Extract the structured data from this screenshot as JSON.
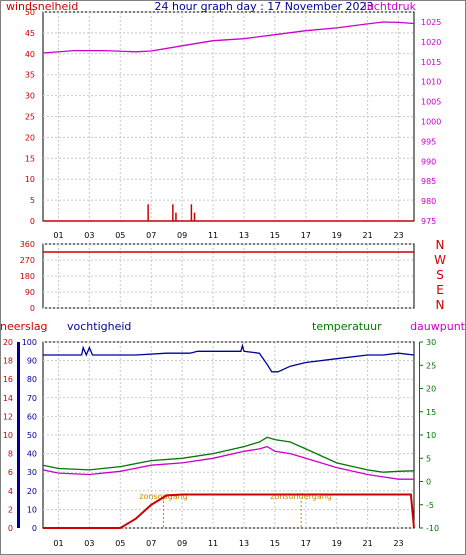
{
  "chart_data": [
    {
      "type": "line",
      "title": "24 hour graph day : 17 November 2023",
      "left_axis_label": "windsnelheid",
      "right_axis_label": "luchtdruk",
      "x_ticks": [
        "01",
        "03",
        "05",
        "07",
        "09",
        "11",
        "13",
        "15",
        "17",
        "19",
        "21",
        "23"
      ],
      "left_ticks": [
        "50",
        "45",
        "40",
        "35",
        "30",
        "25",
        "20",
        "15",
        "10",
        "5",
        "0"
      ],
      "right_ticks": [
        "1025",
        "1020",
        "1015",
        "1010",
        "1005",
        "1000",
        "995",
        "990",
        "985",
        "980",
        "975"
      ],
      "ylim_left": [
        0,
        50
      ],
      "ylim_right": [
        975,
        1027.5
      ],
      "series": [
        {
          "name": "luchtdruk",
          "axis": "right",
          "color": "#cc00cc",
          "x": [
            0,
            2,
            4,
            6,
            7,
            9,
            11,
            13,
            15,
            17,
            19,
            21,
            22,
            23,
            24
          ],
          "y": [
            1017.2,
            1017.8,
            1017.8,
            1017.5,
            1017.7,
            1019.0,
            1020.3,
            1020.8,
            1021.8,
            1022.8,
            1023.5,
            1024.5,
            1025.0,
            1024.9,
            1024.6
          ]
        },
        {
          "name": "windsnelheid",
          "axis": "left",
          "type": "bar",
          "color": "#cc0000",
          "x": [
            6.8,
            8.4,
            8.6,
            9.6,
            9.8
          ],
          "y": [
            4,
            4,
            2,
            4,
            2
          ]
        }
      ]
    },
    {
      "type": "line",
      "tick_labels": [
        "360",
        "270",
        "180",
        "90",
        "0"
      ],
      "direction_labels": [
        "N",
        "W",
        "S",
        "E",
        "N"
      ],
      "ylim": [
        0,
        360
      ],
      "series": [
        {
          "name": "windrichting",
          "color": "#cc0000",
          "x": [
            0,
            24
          ],
          "y": [
            315,
            315
          ]
        }
      ]
    },
    {
      "type": "line",
      "left_label": "neerslag",
      "left2_label": "vochtigheid",
      "right_label": "temperatuur",
      "right2_label": "dauwpunt",
      "x_ticks": [
        "01",
        "03",
        "05",
        "07",
        "09",
        "11",
        "13",
        "15",
        "17",
        "19",
        "21",
        "23"
      ],
      "left_ticks": [
        "20",
        "18",
        "16",
        "14",
        "12",
        "10",
        "8",
        "6",
        "4",
        "2",
        "0"
      ],
      "left2_ticks": [
        "100",
        "90",
        "80",
        "70",
        "60",
        "50",
        "40",
        "30",
        "20",
        "10",
        "0"
      ],
      "right_ticks": [
        "30",
        "25",
        "20",
        "15",
        "10",
        "5",
        "0",
        "-5",
        "-10"
      ],
      "ylim_left2": [
        0,
        100
      ],
      "ylim_right": [
        -10,
        30
      ],
      "annotations": [
        {
          "text": "zonsopgang",
          "x": 7.8
        },
        {
          "text": "zonsondergang",
          "x": 16.7
        }
      ],
      "series": [
        {
          "name": "vochtigheid",
          "axis": "left2",
          "color": "#000099",
          "x": [
            0,
            2.5,
            2.6,
            2.8,
            3.0,
            3.2,
            6,
            8,
            9.5,
            10,
            12.8,
            12.9,
            13.0,
            14,
            14.5,
            14.8,
            15.2,
            16,
            17,
            19,
            21,
            22,
            23,
            24
          ],
          "y": [
            93,
            93,
            97,
            93,
            97,
            93,
            93,
            94,
            94,
            95,
            95,
            98,
            95,
            94,
            88,
            84,
            84,
            87,
            89,
            91,
            93,
            93,
            94,
            93
          ]
        },
        {
          "name": "temperatuur",
          "axis": "right",
          "color": "#007700",
          "x": [
            0,
            1,
            3,
            5,
            7,
            9,
            11,
            13,
            14,
            14.5,
            15,
            16,
            17,
            19,
            21,
            22,
            23,
            24
          ],
          "y": [
            3.5,
            2.8,
            2.5,
            3.2,
            4.5,
            5.0,
            6.0,
            7.5,
            8.5,
            9.5,
            9.0,
            8.5,
            7.0,
            4.0,
            2.5,
            2.0,
            2.2,
            2.3
          ]
        },
        {
          "name": "dauwpunt",
          "axis": "right",
          "color": "#cc00cc",
          "x": [
            0,
            1,
            3,
            5,
            7,
            9,
            11,
            13,
            14,
            14.5,
            15,
            16,
            17,
            19,
            21,
            22,
            23,
            24
          ],
          "y": [
            2.5,
            1.8,
            1.5,
            2.2,
            3.5,
            4.0,
            5.0,
            6.5,
            7.0,
            7.5,
            6.5,
            6.0,
            5.0,
            3.0,
            1.5,
            1.0,
            0.5,
            0.5
          ]
        },
        {
          "name": "neerslag",
          "axis": "left",
          "color": "#cc0000",
          "x": [
            0,
            5,
            6,
            7,
            7.5,
            8,
            9,
            23.8,
            24
          ],
          "y": [
            0,
            0,
            1,
            2.5,
            3,
            3.5,
            3.6,
            3.6,
            0
          ]
        }
      ]
    }
  ]
}
